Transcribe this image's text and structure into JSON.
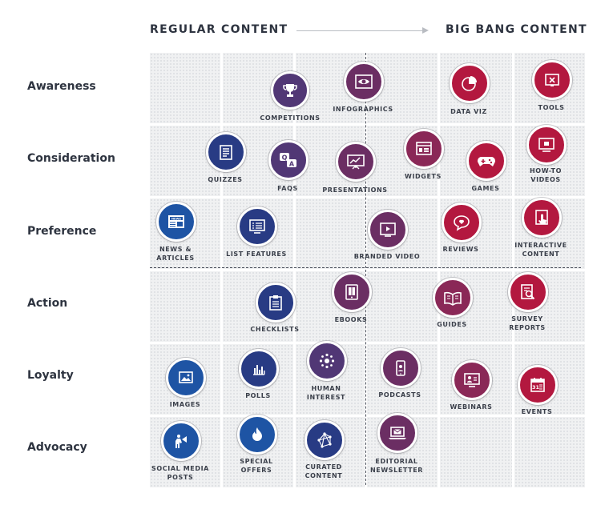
{
  "header": {
    "left": "REGULAR CONTENT",
    "right": "BIG BANG CONTENT"
  },
  "colors": {
    "navy": "#283b84",
    "blue": "#1e54a4",
    "purple": "#513775",
    "plum": "#6b2e63",
    "magenta": "#8a2857",
    "red": "#b3183f",
    "grid_cell": "#f0f1f2",
    "text": "#2e3440"
  },
  "rows": [
    "Awareness",
    "Consideration",
    "Preference",
    "Action",
    "Loyalty",
    "Advocacy"
  ],
  "items": {
    "competitions": {
      "label": "COMPETITIONS",
      "icon": "trophy-icon"
    },
    "infographics": {
      "label": "INFOGRAPHICS",
      "icon": "eye-chart-icon"
    },
    "data_viz": {
      "label": "DATA VIZ",
      "icon": "pie-chart-icon"
    },
    "tools": {
      "label": "TOOLS",
      "icon": "tools-icon"
    },
    "quizzes": {
      "label": "QUIZZES",
      "icon": "quiz-list-icon"
    },
    "faqs": {
      "label": "FAQS",
      "icon": "qa-bubbles-icon"
    },
    "presentations": {
      "label": "PRESENTATIONS",
      "icon": "presentation-board-icon"
    },
    "widgets": {
      "label": "WIDGETS",
      "icon": "widget-window-icon"
    },
    "games": {
      "label": "GAMES",
      "icon": "gamepad-icon"
    },
    "how_to_videos": {
      "label": "HOW-TO\nVIDEOS",
      "icon": "howto-monitor-icon"
    },
    "news_articles": {
      "label": "NEWS &\nARTICLES",
      "icon": "newspaper-icon"
    },
    "list_features": {
      "label": "LIST FEATURES",
      "icon": "list-monitor-icon"
    },
    "branded_video": {
      "label": "BRANDED VIDEO",
      "icon": "video-play-icon"
    },
    "reviews": {
      "label": "REVIEWS",
      "icon": "review-bubble-icon"
    },
    "interactive_content": {
      "label": "INTERACTIVE\nCONTENT",
      "icon": "touch-screen-icon"
    },
    "checklists": {
      "label": "CHECKLISTS",
      "icon": "clipboard-icon"
    },
    "ebooks": {
      "label": "EBOOKS",
      "icon": "ebook-reader-icon"
    },
    "guides": {
      "label": "GUIDES",
      "icon": "open-book-icon"
    },
    "survey_reports": {
      "label": "SURVEY\nREPORTS",
      "icon": "report-magnifier-icon"
    },
    "images": {
      "label": "IMAGES",
      "icon": "image-icon"
    },
    "polls": {
      "label": "POLLS",
      "icon": "bar-chart-icon"
    },
    "human_interest": {
      "label": "HUMAN\nINTEREST",
      "icon": "people-network-icon"
    },
    "podcasts": {
      "label": "PODCASTS",
      "icon": "phone-podcast-icon"
    },
    "webinars": {
      "label": "WEBINARS",
      "icon": "webinar-screen-icon"
    },
    "events": {
      "label": "EVENTS",
      "icon": "calendar-icon"
    },
    "social_media_posts": {
      "label": "SOCIAL MEDIA\nPOSTS",
      "icon": "megaphone-person-icon"
    },
    "special_offers": {
      "label": "SPECIAL\nOFFERS",
      "icon": "flame-icon"
    },
    "curated_content": {
      "label": "CURATED\nCONTENT",
      "icon": "network-nodes-icon"
    },
    "editorial_newsletter": {
      "label": "EDITORIAL\nNEWSLETTER",
      "icon": "laptop-envelope-icon"
    }
  }
}
